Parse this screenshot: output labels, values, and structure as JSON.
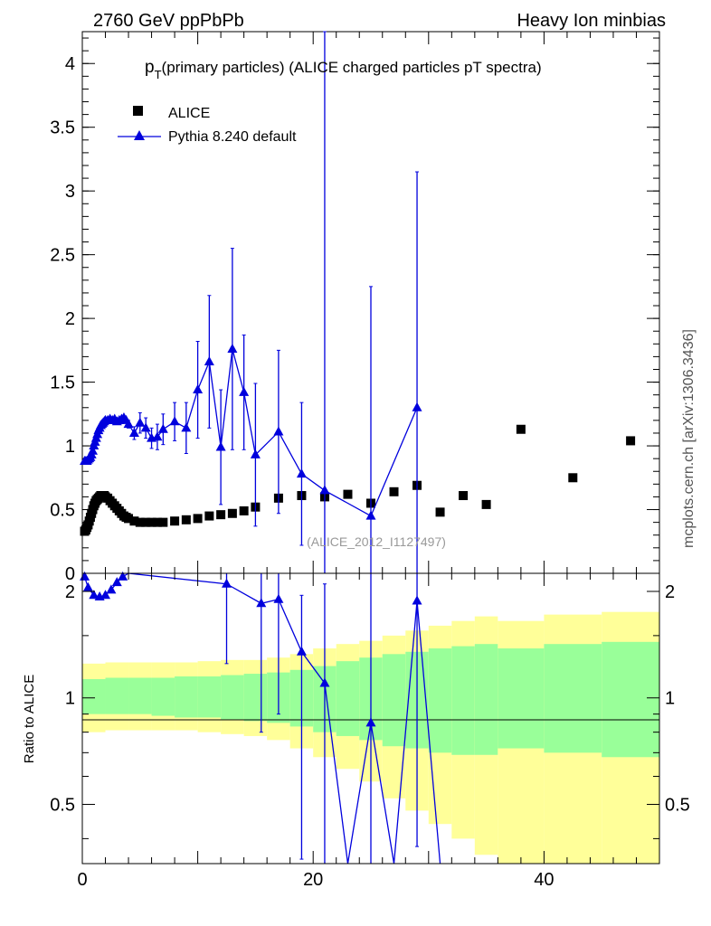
{
  "header": {
    "left": "2760 GeV ppPbPb",
    "right": "Heavy Ion minbias"
  },
  "side_label": "mcplots.cern.ch [arXiv:1306.3436]",
  "watermark": "(ALICE_2012_I1127497)",
  "plot_title": {
    "main": "p",
    "sub": "T",
    "rest": "(primary particles) (ALICE charged particles pT spectra)"
  },
  "legend": [
    {
      "label": "ALICE",
      "marker": "square",
      "color": "#000000"
    },
    {
      "label": "Pythia 8.240 default",
      "marker": "triangle",
      "color": "#0000dd"
    }
  ],
  "colors": {
    "data": "#000000",
    "mc": "#0000dd",
    "band_outer": "#ffff99",
    "band_inner": "#99ff99"
  },
  "chart_data": [
    {
      "type": "scatter",
      "panel": "main",
      "ylim": [
        0,
        4.25
      ],
      "xlim": [
        0,
        50
      ],
      "yticks": [
        0,
        0.5,
        1,
        1.5,
        2,
        2.5,
        3,
        3.5,
        4
      ],
      "ytick_labels": [
        "0",
        "0.5",
        "1",
        "1.5",
        "2",
        "2.5",
        "3",
        "3.5",
        "4"
      ],
      "series": [
        {
          "name": "ALICE",
          "x": [
            0.2,
            0.3,
            0.4,
            0.5,
            0.6,
            0.7,
            0.8,
            0.9,
            1.0,
            1.1,
            1.2,
            1.3,
            1.4,
            1.5,
            1.6,
            1.7,
            1.8,
            1.9,
            2.0,
            2.2,
            2.4,
            2.6,
            2.8,
            3.0,
            3.2,
            3.4,
            3.6,
            3.8,
            4.0,
            4.5,
            5.0,
            5.5,
            6.0,
            6.5,
            7.0,
            8.0,
            9.0,
            10.0,
            11.0,
            12.0,
            13.0,
            14.0,
            15.0,
            17.0,
            19.0,
            21.0,
            23.0,
            25.0,
            27.0,
            29.0,
            31.0,
            33.0,
            35.0,
            38.0,
            42.5,
            47.5
          ],
          "y": [
            0.33,
            0.34,
            0.36,
            0.38,
            0.41,
            0.44,
            0.47,
            0.5,
            0.53,
            0.55,
            0.57,
            0.58,
            0.59,
            0.6,
            0.61,
            0.61,
            0.61,
            0.61,
            0.6,
            0.59,
            0.57,
            0.55,
            0.53,
            0.51,
            0.49,
            0.47,
            0.45,
            0.44,
            0.43,
            0.41,
            0.4,
            0.4,
            0.4,
            0.4,
            0.4,
            0.41,
            0.42,
            0.43,
            0.45,
            0.46,
            0.47,
            0.49,
            0.52,
            0.59,
            0.61,
            0.6,
            0.62,
            0.55,
            0.64,
            0.69,
            0.48,
            0.61,
            0.54,
            1.13,
            0.75,
            1.04
          ]
        },
        {
          "name": "Pythia 8.240 default",
          "x": [
            0.2,
            0.3,
            0.4,
            0.5,
            0.6,
            0.7,
            0.8,
            0.9,
            1.0,
            1.1,
            1.2,
            1.3,
            1.4,
            1.5,
            1.6,
            1.7,
            1.8,
            1.9,
            2.0,
            2.2,
            2.4,
            2.6,
            2.8,
            3.0,
            3.2,
            3.4,
            3.6,
            3.8,
            4.0,
            4.5,
            5.0,
            5.5,
            6.0,
            6.5,
            7.0,
            8.0,
            9.0,
            10.0,
            11.0,
            12.0,
            13.0,
            14.0,
            15.0,
            17.0,
            19.0,
            21.0,
            25.0,
            29.0
          ],
          "y": [
            0.88,
            0.88,
            0.88,
            0.89,
            0.9,
            0.91,
            0.93,
            0.96,
            1.0,
            1.03,
            1.06,
            1.09,
            1.12,
            1.14,
            1.16,
            1.17,
            1.18,
            1.19,
            1.2,
            1.2,
            1.21,
            1.2,
            1.21,
            1.19,
            1.2,
            1.21,
            1.22,
            1.2,
            1.17,
            1.1,
            1.18,
            1.14,
            1.06,
            1.07,
            1.13,
            1.19,
            1.14,
            1.44,
            1.66,
            0.99,
            1.76,
            1.42,
            0.93,
            1.11,
            0.78,
            0.65,
            0.45,
            1.3
          ],
          "err": [
            0,
            0,
            0,
            0,
            0,
            0,
            0,
            0,
            0,
            0,
            0,
            0,
            0,
            0,
            0,
            0,
            0,
            0,
            0,
            0,
            0,
            0,
            0,
            0,
            0,
            0,
            0,
            0,
            0.03,
            0.05,
            0.08,
            0.08,
            0.08,
            0.1,
            0.12,
            0.15,
            0.2,
            0.38,
            0.52,
            0.45,
            0.79,
            0.45,
            0.56,
            0.64,
            0.56,
            4.2,
            1.8,
            1.85
          ]
        }
      ]
    },
    {
      "type": "line",
      "panel": "ratio",
      "ylabel": "Ratio to ALICE",
      "xlabel": "",
      "ylim": [
        0.34,
        2.25
      ],
      "xlim": [
        0,
        50
      ],
      "xticks": [
        0,
        20,
        40
      ],
      "xtick_labels": [
        "0",
        "20",
        "40"
      ],
      "yticks": [
        0.5,
        1,
        2
      ],
      "ytick_labels": [
        "0.5",
        "1",
        "2"
      ],
      "series": [
        {
          "name": "Pythia 8.240 default",
          "x": [
            0.2,
            0.5,
            1.0,
            1.5,
            2.0,
            2.5,
            3.0,
            3.5,
            4.0,
            12.5,
            15.5,
            17.0,
            19.0,
            21.0,
            23.0,
            25.0,
            27.0,
            29.0,
            31.0
          ],
          "y": [
            2.2,
            2.05,
            1.95,
            1.93,
            1.95,
            2.02,
            2.12,
            2.2,
            2.3,
            2.1,
            1.85,
            1.9,
            1.35,
            1.1,
            0.3,
            0.85,
            0.3,
            1.88,
            0.3
          ],
          "err_lo": [
            0,
            0,
            0,
            0,
            0,
            0,
            0,
            0,
            0,
            0.85,
            1.05,
            1.0,
            1.0,
            1.0,
            0,
            0.6,
            0,
            1.5,
            0
          ],
          "err_hi": [
            0,
            0,
            0,
            0,
            0,
            0,
            0,
            0,
            0,
            0.6,
            0.6,
            0.6,
            0.6,
            1.0,
            0,
            1.5,
            0,
            1.6,
            0
          ]
        }
      ],
      "bands": {
        "edges": [
          0,
          2,
          4,
          6,
          8,
          10,
          12,
          14,
          16,
          18,
          20,
          22,
          24,
          26,
          28,
          30,
          32,
          34,
          36,
          40,
          45,
          50
        ],
        "outer_lo": [
          0.8,
          0.81,
          0.81,
          0.81,
          0.81,
          0.8,
          0.79,
          0.78,
          0.76,
          0.72,
          0.68,
          0.63,
          0.58,
          0.52,
          0.48,
          0.44,
          0.4,
          0.36,
          0.34,
          0.34,
          0.34
        ],
        "outer_hi": [
          1.25,
          1.26,
          1.26,
          1.26,
          1.26,
          1.27,
          1.28,
          1.28,
          1.3,
          1.33,
          1.38,
          1.42,
          1.45,
          1.5,
          1.55,
          1.6,
          1.65,
          1.7,
          1.65,
          1.72,
          1.75
        ],
        "inner_lo": [
          0.9,
          0.9,
          0.9,
          0.89,
          0.88,
          0.88,
          0.87,
          0.86,
          0.85,
          0.83,
          0.8,
          0.78,
          0.76,
          0.73,
          0.72,
          0.7,
          0.69,
          0.69,
          0.72,
          0.7,
          0.68
        ],
        "inner_hi": [
          1.13,
          1.14,
          1.14,
          1.14,
          1.15,
          1.15,
          1.16,
          1.17,
          1.18,
          1.2,
          1.23,
          1.27,
          1.3,
          1.33,
          1.35,
          1.38,
          1.4,
          1.42,
          1.38,
          1.42,
          1.44
        ]
      }
    }
  ]
}
